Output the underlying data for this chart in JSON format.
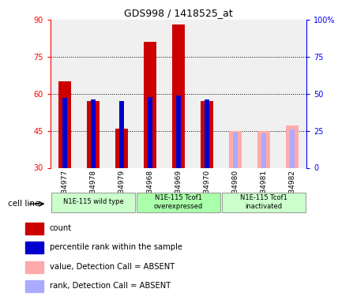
{
  "title": "GDS998 / 1418525_at",
  "samples": [
    "GSM34977",
    "GSM34978",
    "GSM34979",
    "GSM34968",
    "GSM34969",
    "GSM34970",
    "GSM34980",
    "GSM34981",
    "GSM34982"
  ],
  "count_values": [
    65,
    57,
    46,
    81,
    88,
    57,
    null,
    null,
    null
  ],
  "rank_values": [
    47,
    46,
    45,
    48,
    49,
    46,
    null,
    null,
    null
  ],
  "count_absent": [
    null,
    null,
    null,
    null,
    null,
    null,
    45,
    45,
    47
  ],
  "rank_absent": [
    null,
    null,
    null,
    null,
    null,
    null,
    24,
    23,
    26
  ],
  "ylim_left": [
    30,
    90
  ],
  "ylim_right": [
    0,
    100
  ],
  "yticks_left": [
    30,
    45,
    60,
    75,
    90
  ],
  "yticks_right": [
    0,
    25,
    50,
    75,
    100
  ],
  "ytick_labels_right": [
    "0",
    "25",
    "50",
    "75",
    "100%"
  ],
  "groups": [
    {
      "label": "N1E-115 wild type",
      "start": 0,
      "end": 3,
      "color": "#ccffcc"
    },
    {
      "label": "N1E-115 Tcof1\noverexpressed",
      "start": 3,
      "end": 6,
      "color": "#aaffaa"
    },
    {
      "label": "N1E-115 Tcof1\ninactivated",
      "start": 6,
      "end": 9,
      "color": "#ccffcc"
    }
  ],
  "bar_width": 0.45,
  "bar_color_present": "#cc0000",
  "bar_color_absent": "#ffaaaa",
  "rank_color_present": "#0000cc",
  "rank_color_absent": "#aaaaff",
  "rank_bar_width": 0.18,
  "background_color": "#ffffff",
  "plot_bg_color": "#f0f0f0",
  "legend_items": [
    {
      "label": "count",
      "color": "#cc0000"
    },
    {
      "label": "percentile rank within the sample",
      "color": "#0000cc"
    },
    {
      "label": "value, Detection Call = ABSENT",
      "color": "#ffaaaa"
    },
    {
      "label": "rank, Detection Call = ABSENT",
      "color": "#aaaaff"
    }
  ],
  "cell_line_label": "cell line"
}
